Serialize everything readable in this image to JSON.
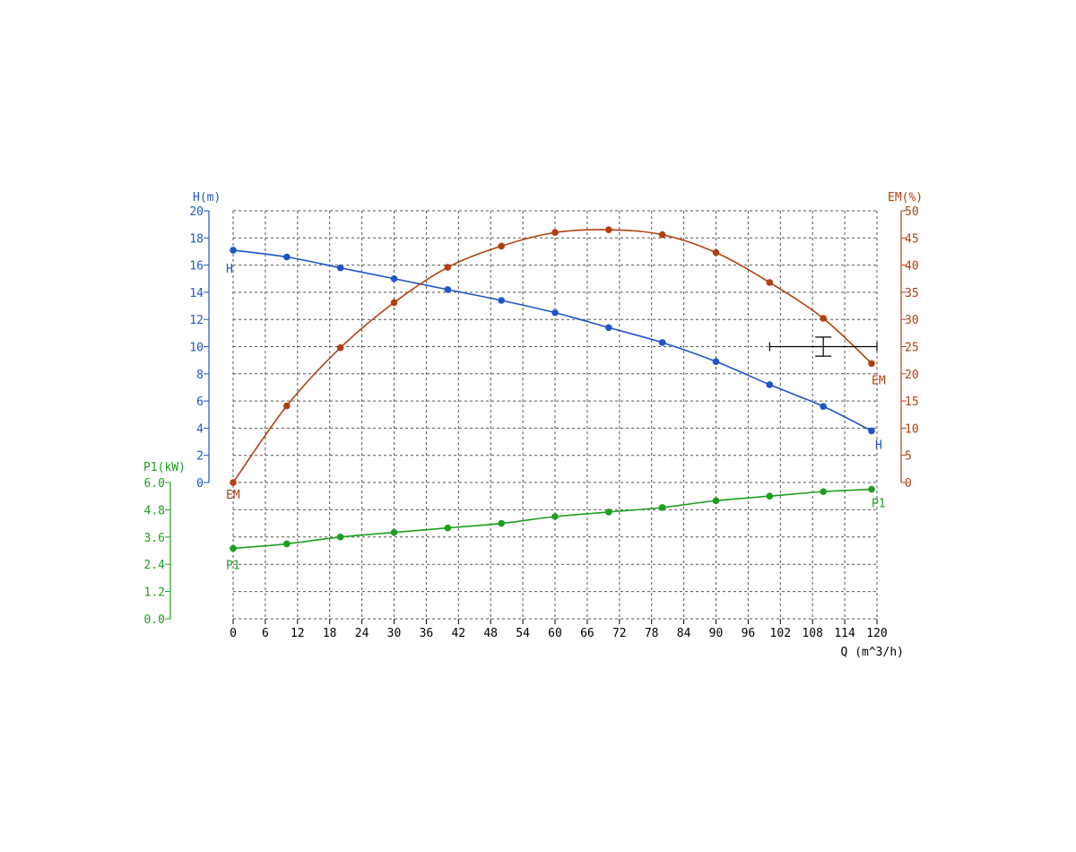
{
  "chart_data": {
    "type": "line",
    "x_axis": {
      "label": "Q (m^3/h)",
      "range": [
        0,
        120
      ],
      "ticks": [
        0,
        6,
        12,
        18,
        24,
        30,
        36,
        42,
        48,
        54,
        60,
        66,
        72,
        78,
        84,
        90,
        96,
        102,
        108,
        114,
        120
      ]
    },
    "axes": {
      "H": {
        "label": "H(m)",
        "range": [
          0,
          20
        ],
        "ticks": [
          0,
          2,
          4,
          6,
          8,
          10,
          12,
          14,
          16,
          18,
          20
        ],
        "color": "#1f55c8"
      },
      "EM": {
        "label": "EM(%)",
        "range": [
          0,
          50
        ],
        "ticks": [
          0,
          5,
          10,
          15,
          20,
          25,
          30,
          35,
          40,
          45,
          50
        ],
        "color": "#b0400f"
      },
      "P1": {
        "label": "P1(kW)",
        "range": [
          0,
          6
        ],
        "ticks": [
          "0.0",
          "1.2",
          "2.4",
          "3.6",
          "4.8",
          "6.0"
        ],
        "color": "#1e9e1e"
      }
    },
    "series": [
      {
        "name": "H",
        "axis": "H",
        "color": "#1f55c8",
        "x": [
          0,
          10,
          20,
          30,
          40,
          50,
          60,
          70,
          80,
          90,
          100,
          110,
          119
        ],
        "y": [
          17.1,
          16.6,
          15.8,
          15.0,
          14.2,
          13.4,
          12.5,
          11.4,
          10.3,
          8.9,
          7.2,
          5.6,
          3.8
        ],
        "end_labels": [
          "H",
          "H"
        ]
      },
      {
        "name": "EM",
        "axis": "EM",
        "color": "#b0400f",
        "x": [
          0,
          10,
          20,
          30,
          40,
          50,
          60,
          70,
          80,
          90,
          100,
          110,
          119
        ],
        "y": [
          0,
          14.1,
          24.8,
          33.1,
          39.6,
          43.5,
          46.0,
          46.5,
          45.6,
          42.3,
          36.8,
          30.2,
          21.9
        ],
        "end_labels": [
          "EM",
          "EM"
        ]
      },
      {
        "name": "P1",
        "axis": "P1",
        "color": "#1e9e1e",
        "x": [
          0,
          10,
          20,
          30,
          40,
          50,
          60,
          70,
          80,
          90,
          100,
          110,
          119
        ],
        "y": [
          3.1,
          3.3,
          3.6,
          3.8,
          4.0,
          4.2,
          4.5,
          4.7,
          4.9,
          5.2,
          5.4,
          5.6,
          5.7
        ],
        "end_labels": [
          "P1",
          "P1"
        ]
      }
    ],
    "operating_point": {
      "q": 110,
      "h": 10,
      "q_range": [
        100,
        120
      ],
      "h_range": [
        9.3,
        10.7
      ],
      "color": "#000000"
    },
    "grid": true
  }
}
